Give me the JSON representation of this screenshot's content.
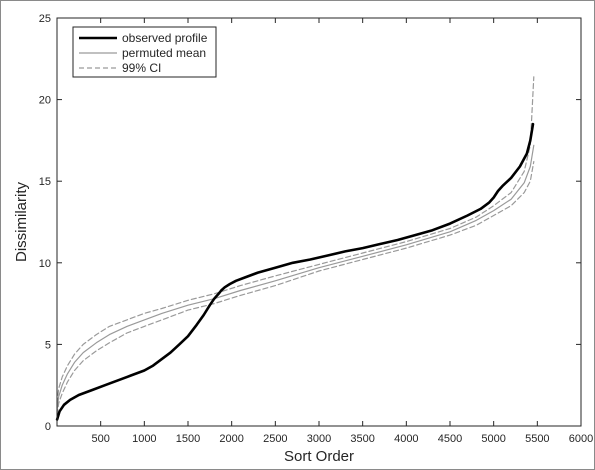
{
  "chart_data": {
    "type": "line",
    "title": "",
    "xlabel": "Sort Order",
    "ylabel": "Dissimilarity",
    "xlim": [
      0,
      6000
    ],
    "ylim": [
      0,
      25
    ],
    "xticks": [
      500,
      1000,
      1500,
      2000,
      2500,
      3000,
      3500,
      4000,
      4500,
      5000,
      5500,
      6000
    ],
    "yticks": [
      0,
      5,
      10,
      15,
      20,
      25
    ],
    "grid": false,
    "legend_position": "top-left",
    "series": [
      {
        "name": "observed profile",
        "style": "solid-thick",
        "color": "#000000",
        "x": [
          1,
          30,
          80,
          150,
          250,
          400,
          550,
          700,
          850,
          1000,
          1100,
          1200,
          1300,
          1400,
          1500,
          1600,
          1680,
          1750,
          1800,
          1850,
          1880,
          1920,
          1980,
          2050,
          2150,
          2300,
          2500,
          2700,
          2900,
          3100,
          3300,
          3500,
          3700,
          3900,
          4100,
          4300,
          4500,
          4700,
          4850,
          4950,
          5000,
          5050,
          5100,
          5200,
          5300,
          5380,
          5420,
          5450
        ],
        "y": [
          0.4,
          0.9,
          1.3,
          1.6,
          1.9,
          2.2,
          2.5,
          2.8,
          3.1,
          3.4,
          3.7,
          4.1,
          4.5,
          5.0,
          5.5,
          6.2,
          6.8,
          7.4,
          7.8,
          8.1,
          8.3,
          8.5,
          8.7,
          8.9,
          9.1,
          9.4,
          9.7,
          10.0,
          10.2,
          10.45,
          10.7,
          10.9,
          11.15,
          11.4,
          11.7,
          12.0,
          12.4,
          12.9,
          13.3,
          13.7,
          14.0,
          14.4,
          14.7,
          15.2,
          15.9,
          16.7,
          17.5,
          18.5
        ]
      },
      {
        "name": "permuted mean",
        "style": "solid-thin",
        "color": "#9a9a9a",
        "x": [
          1,
          20,
          60,
          120,
          200,
          300,
          450,
          600,
          800,
          1000,
          1200,
          1500,
          1800,
          2100,
          2500,
          3000,
          3500,
          4000,
          4500,
          4800,
          5000,
          5200,
          5350,
          5420,
          5460
        ],
        "y": [
          1.0,
          1.8,
          2.5,
          3.2,
          3.9,
          4.5,
          5.1,
          5.6,
          6.1,
          6.5,
          6.9,
          7.4,
          7.8,
          8.3,
          8.9,
          9.7,
          10.4,
          11.1,
          11.9,
          12.6,
          13.2,
          13.9,
          14.9,
          15.9,
          17.2
        ]
      },
      {
        "name": "99% CI",
        "style": "dashed",
        "color": "#9a9a9a",
        "x": [
          1,
          20,
          60,
          120,
          200,
          300,
          450,
          600,
          800,
          1000,
          1200,
          1500,
          1800,
          2100,
          2500,
          3000,
          3500,
          4000,
          4500,
          4800,
          5000,
          5200,
          5350,
          5420,
          5460
        ],
        "y": [
          1.4,
          2.3,
          3.0,
          3.7,
          4.4,
          5.0,
          5.6,
          6.1,
          6.5,
          6.9,
          7.2,
          7.7,
          8.1,
          8.6,
          9.2,
          9.9,
          10.6,
          11.3,
          12.1,
          12.8,
          13.5,
          14.3,
          15.6,
          17.2,
          21.4
        ]
      },
      {
        "name": "",
        "style": "dashed",
        "color": "#9a9a9a",
        "x": [
          1,
          20,
          60,
          120,
          200,
          300,
          450,
          600,
          800,
          1000,
          1200,
          1500,
          1800,
          2100,
          2500,
          3000,
          3500,
          4000,
          4500,
          4800,
          5000,
          5200,
          5350,
          5420,
          5460
        ],
        "y": [
          0.7,
          1.4,
          2.0,
          2.7,
          3.4,
          4.0,
          4.6,
          5.1,
          5.7,
          6.1,
          6.5,
          7.1,
          7.5,
          8.0,
          8.6,
          9.5,
          10.2,
          10.9,
          11.7,
          12.3,
          12.9,
          13.5,
          14.3,
          15.0,
          16.2
        ]
      }
    ]
  }
}
